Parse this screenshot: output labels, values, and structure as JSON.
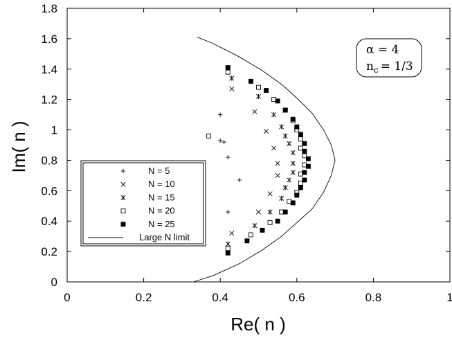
{
  "chart_data": {
    "type": "scatter",
    "xlabel": "Re( n )",
    "ylabel": "Im( n )",
    "xlim": [
      0,
      1
    ],
    "ylim": [
      0,
      1.8
    ],
    "xticks": [
      "0",
      "0.2",
      "0.4",
      "0.6",
      "0.8",
      "1"
    ],
    "yticks": [
      "0",
      "0.2",
      "0.4",
      "0.6",
      "0.8",
      "1",
      "1.2",
      "1.4",
      "1.6",
      "1.8"
    ],
    "grid": false,
    "legend_position": "left",
    "annotation": {
      "line1": "α = 4",
      "line2_main": "n",
      "line2_sub": "c",
      "line2_rest": "= 1/3"
    },
    "series": [
      {
        "name": "N = 5",
        "marker": "plus",
        "points": [
          [
            0.4,
            1.1
          ],
          [
            0.4,
            0.93
          ],
          [
            0.41,
            0.92
          ],
          [
            0.42,
            0.82
          ],
          [
            0.45,
            0.67
          ],
          [
            0.42,
            0.46
          ]
        ]
      },
      {
        "name": "N = 10",
        "marker": "cross",
        "points": [
          [
            0.43,
            1.27
          ],
          [
            0.49,
            1.12
          ],
          [
            0.52,
            0.99
          ],
          [
            0.54,
            0.88
          ],
          [
            0.55,
            0.78
          ],
          [
            0.55,
            0.7
          ],
          [
            0.53,
            0.58
          ],
          [
            0.5,
            0.46
          ],
          [
            0.43,
            0.32
          ]
        ]
      },
      {
        "name": "N = 15",
        "marker": "asterisk",
        "points": [
          [
            0.43,
            1.34
          ],
          [
            0.5,
            1.22
          ],
          [
            0.54,
            1.1
          ],
          [
            0.56,
            1.02
          ],
          [
            0.57,
            0.96
          ],
          [
            0.58,
            0.91
          ],
          [
            0.59,
            0.85
          ],
          [
            0.59,
            0.78
          ],
          [
            0.59,
            0.72
          ],
          [
            0.58,
            0.67
          ],
          [
            0.57,
            0.62
          ],
          [
            0.56,
            0.55
          ],
          [
            0.53,
            0.46
          ],
          [
            0.49,
            0.37
          ],
          [
            0.42,
            0.25
          ]
        ]
      },
      {
        "name": "N = 20",
        "marker": "square",
        "points": [
          [
            0.42,
            1.38
          ],
          [
            0.5,
            1.28
          ],
          [
            0.54,
            1.2
          ],
          [
            0.57,
            1.13
          ],
          [
            0.59,
            1.06
          ],
          [
            0.6,
            1.0
          ],
          [
            0.61,
            0.94
          ],
          [
            0.61,
            0.88
          ],
          [
            0.62,
            0.83
          ],
          [
            0.62,
            0.77
          ],
          [
            0.61,
            0.71
          ],
          [
            0.61,
            0.65
          ],
          [
            0.6,
            0.59
          ],
          [
            0.58,
            0.53
          ],
          [
            0.56,
            0.46
          ],
          [
            0.53,
            0.39
          ],
          [
            0.48,
            0.31
          ],
          [
            0.42,
            0.22
          ],
          [
            0.37,
            0.96
          ]
        ]
      },
      {
        "name": "N = 25",
        "marker": "filled-square",
        "points": [
          [
            0.42,
            1.41
          ],
          [
            0.48,
            1.32
          ],
          [
            0.52,
            1.26
          ],
          [
            0.55,
            1.19
          ],
          [
            0.57,
            1.13
          ],
          [
            0.59,
            1.07
          ],
          [
            0.6,
            1.02
          ],
          [
            0.61,
            0.97
          ],
          [
            0.62,
            0.91
          ],
          [
            0.62,
            0.86
          ],
          [
            0.63,
            0.81
          ],
          [
            0.63,
            0.76
          ],
          [
            0.62,
            0.72
          ],
          [
            0.62,
            0.67
          ],
          [
            0.61,
            0.62
          ],
          [
            0.6,
            0.57
          ],
          [
            0.59,
            0.52
          ],
          [
            0.57,
            0.46
          ],
          [
            0.55,
            0.4
          ],
          [
            0.51,
            0.34
          ],
          [
            0.47,
            0.27
          ],
          [
            0.42,
            0.19
          ]
        ]
      },
      {
        "name": "Large N limit",
        "marker": "line",
        "points": [
          [
            0.34,
            1.61
          ],
          [
            0.38,
            1.57
          ],
          [
            0.45,
            1.48
          ],
          [
            0.51,
            1.39
          ],
          [
            0.56,
            1.3
          ],
          [
            0.6,
            1.21
          ],
          [
            0.64,
            1.11
          ],
          [
            0.67,
            1.0
          ],
          [
            0.69,
            0.9
          ],
          [
            0.7,
            0.8
          ],
          [
            0.69,
            0.7
          ],
          [
            0.67,
            0.59
          ],
          [
            0.64,
            0.48
          ],
          [
            0.6,
            0.39
          ],
          [
            0.56,
            0.3
          ],
          [
            0.51,
            0.21
          ],
          [
            0.45,
            0.12
          ],
          [
            0.38,
            0.04
          ],
          [
            0.33,
            0.0
          ]
        ]
      }
    ]
  }
}
